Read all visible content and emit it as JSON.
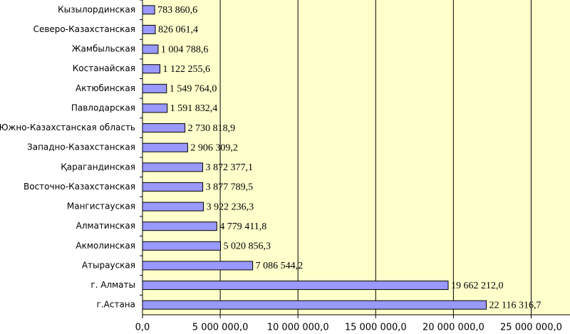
{
  "chart_data": {
    "type": "barh",
    "categories": [
      "Кызылординская",
      "Северо-Казахстанская",
      "Жамбыльская",
      "Костанайская",
      "Актюбинская",
      "Павлодарская",
      "Южно-Казахстанская область",
      "Западно-Казахстанская",
      "Қарагандинская",
      "Восточно-Казахстанская",
      "Мангистауская",
      "Алматинская",
      "Акмолинская",
      "Атырауская",
      "г. Алматы",
      "г.Астана"
    ],
    "values": [
      783860.6,
      826061.4,
      1004788.6,
      1122255.6,
      1549764.0,
      1591832.4,
      2730818.9,
      2906309.2,
      3872377.1,
      3877789.5,
      3922236.3,
      4779411.8,
      5020856.3,
      7086544.2,
      19662212.0,
      22116316.7
    ],
    "value_labels": [
      "783 860,6",
      "826 061,4",
      "1 004 788,6",
      "1 122 255,6",
      "1 549 764,0",
      "1 591 832,4",
      "2 730 818,9",
      "2 906 309,2",
      "3 872 377,1",
      "3 877 789,5",
      "3 922 236,3",
      "4 779 411,8",
      "5 020 856,3",
      "7 086 544,2",
      "19 662 212,0",
      "22 116 316,7"
    ],
    "color": "#9999ff",
    "xlim": [
      0,
      27500000
    ],
    "xticks": [
      {
        "value": 0,
        "label": "0,0"
      },
      {
        "value": 5000000,
        "label": "5 000 000,0"
      },
      {
        "value": 10000000,
        "label": "10 000 000,0"
      },
      {
        "value": 15000000,
        "label": "15 000 000,0"
      },
      {
        "value": 20000000,
        "label": "20 000 000,0"
      },
      {
        "value": 25000000,
        "label": "25 000 000,0"
      }
    ],
    "grid": true
  }
}
